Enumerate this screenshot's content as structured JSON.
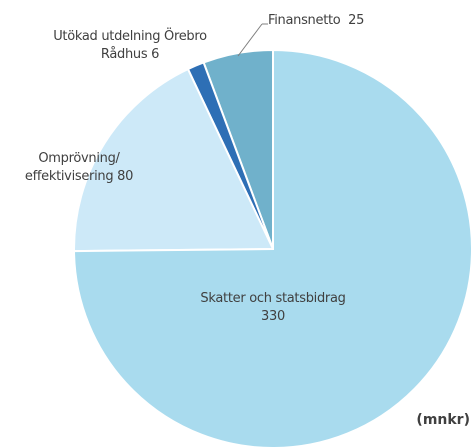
{
  "chart_data": {
    "type": "pie",
    "categories": [
      "Skatter och statsbidrag",
      "Omprövning/ effektivisering",
      "Utökad utdelning Örebro Rådhus",
      "Finansnetto"
    ],
    "values": [
      330,
      80,
      6,
      25
    ],
    "colors": [
      "#a9dbee",
      "#cde9f8",
      "#2e6fb5",
      "#70b1cb"
    ],
    "unit_label": "(mnkr)"
  }
}
